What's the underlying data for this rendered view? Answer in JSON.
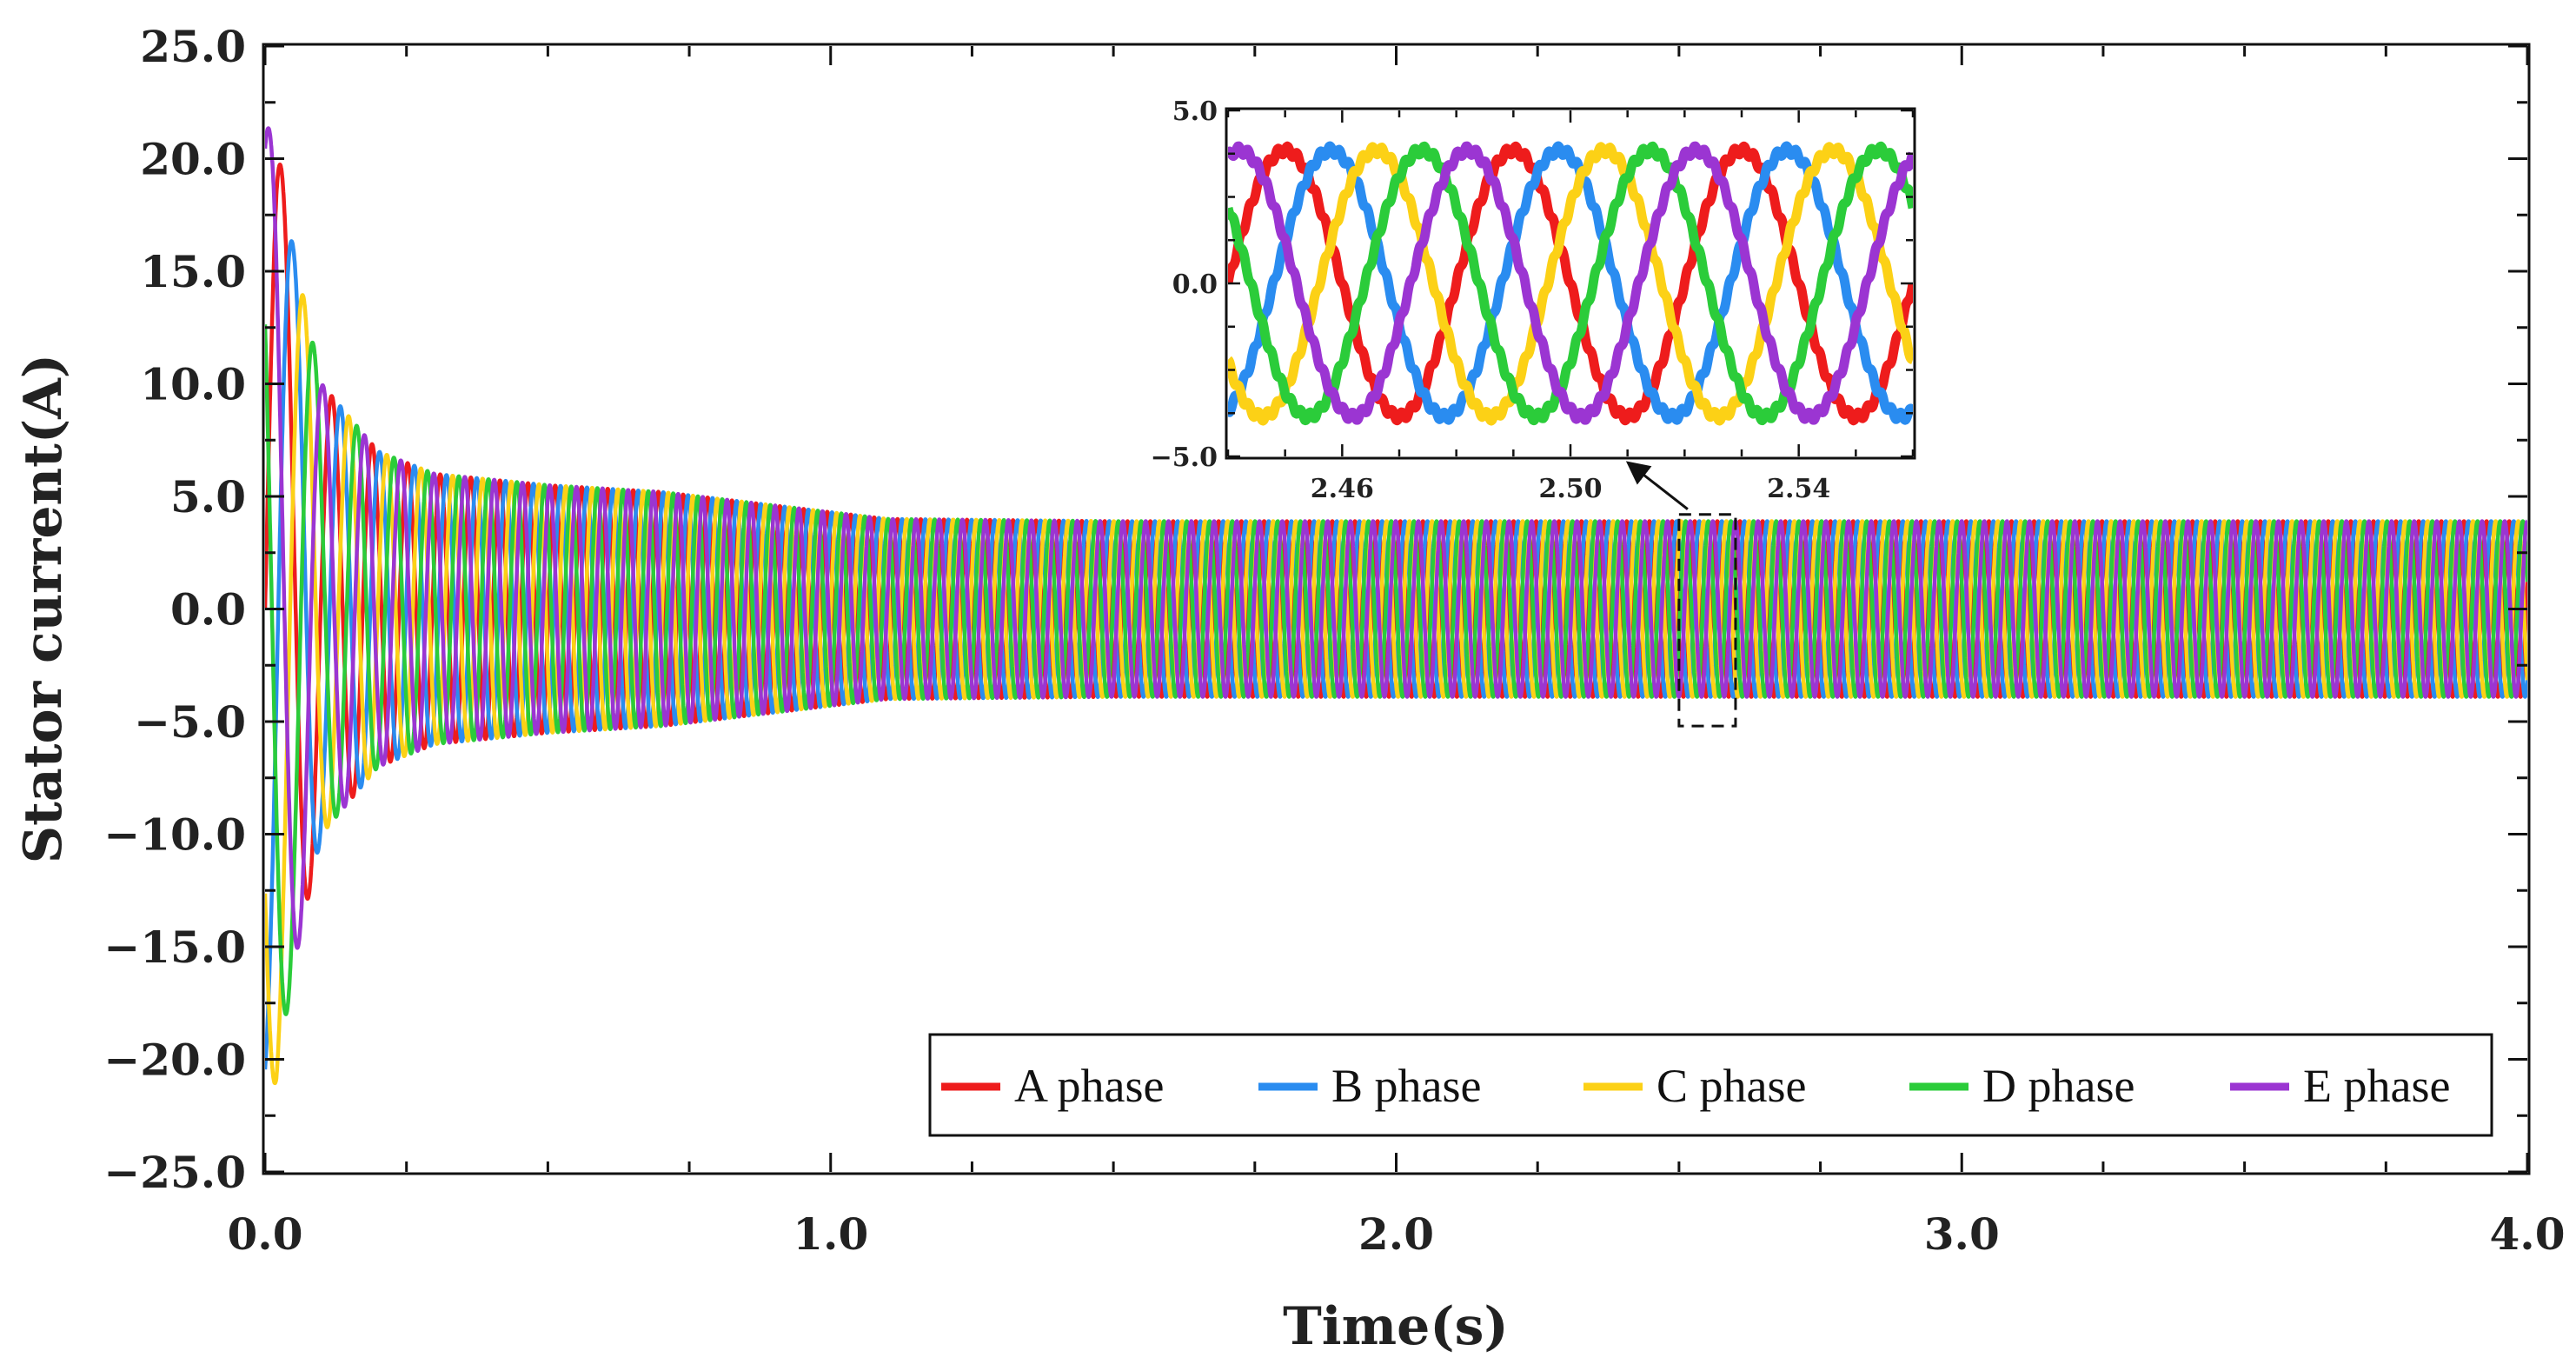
{
  "chart_data": {
    "type": "line",
    "title": "",
    "xlabel": "Time(s)",
    "ylabel": "Stator current(A)",
    "xlim": [
      0.0,
      4.0
    ],
    "ylim": [
      -25.0,
      25.0
    ],
    "x_ticks": [
      0.0,
      1.0,
      2.0,
      3.0,
      4.0
    ],
    "x_tick_labels": [
      "0.0",
      "1.0",
      "2.0",
      "3.0",
      "4.0"
    ],
    "y_ticks": [
      25.0,
      20.0,
      15.0,
      10.0,
      5.0,
      0.0,
      -5.0,
      -10.0,
      -15.0,
      -20.0,
      -25.0
    ],
    "y_tick_labels": [
      "25.0",
      "20.0",
      "15.0",
      "10.0",
      "5.0",
      "0.0",
      "−5.0",
      "−10.0",
      "−15.0",
      "−20.0",
      "−25.0"
    ],
    "grid": false,
    "legend_position": "bottom-right",
    "series": [
      {
        "name": "A phase",
        "color": "#ee1c1c",
        "phase_deg": 0
      },
      {
        "name": "B phase",
        "color": "#2a8cf0",
        "phase_deg": -72
      },
      {
        "name": "C phase",
        "color": "#fcd116",
        "phase_deg": -144
      },
      {
        "name": "D phase",
        "color": "#2bcc3a",
        "phase_deg": -216
      },
      {
        "name": "E phase",
        "color": "#9b35d2",
        "phase_deg": -288
      }
    ],
    "envelope": {
      "time": [
        0.0,
        0.02,
        0.05,
        0.1,
        0.2,
        0.3,
        0.5,
        0.7,
        0.9,
        1.1,
        1.5,
        2.0,
        3.0,
        4.0
      ],
      "amplitude": [
        21.5,
        21.0,
        16.0,
        10.0,
        7.0,
        6.0,
        5.5,
        5.2,
        4.6,
        4.0,
        3.9,
        3.9,
        3.9,
        3.9
      ]
    },
    "steady_frequency_hz": 25,
    "inset": {
      "xlim": [
        2.44,
        2.56
      ],
      "ylim": [
        -5.0,
        5.0
      ],
      "x_ticks": [
        2.46,
        2.5,
        2.54
      ],
      "x_tick_labels": [
        "2.46",
        "2.50",
        "2.54"
      ],
      "y_ticks": [
        5.0,
        0.0,
        -5.0
      ],
      "y_tick_labels": [
        "5.0",
        "0.0",
        "−5.0"
      ],
      "zoom_region": {
        "t_start": 2.5,
        "t_end": 2.6,
        "i_min": -5.2,
        "i_max": 4.2
      }
    }
  }
}
